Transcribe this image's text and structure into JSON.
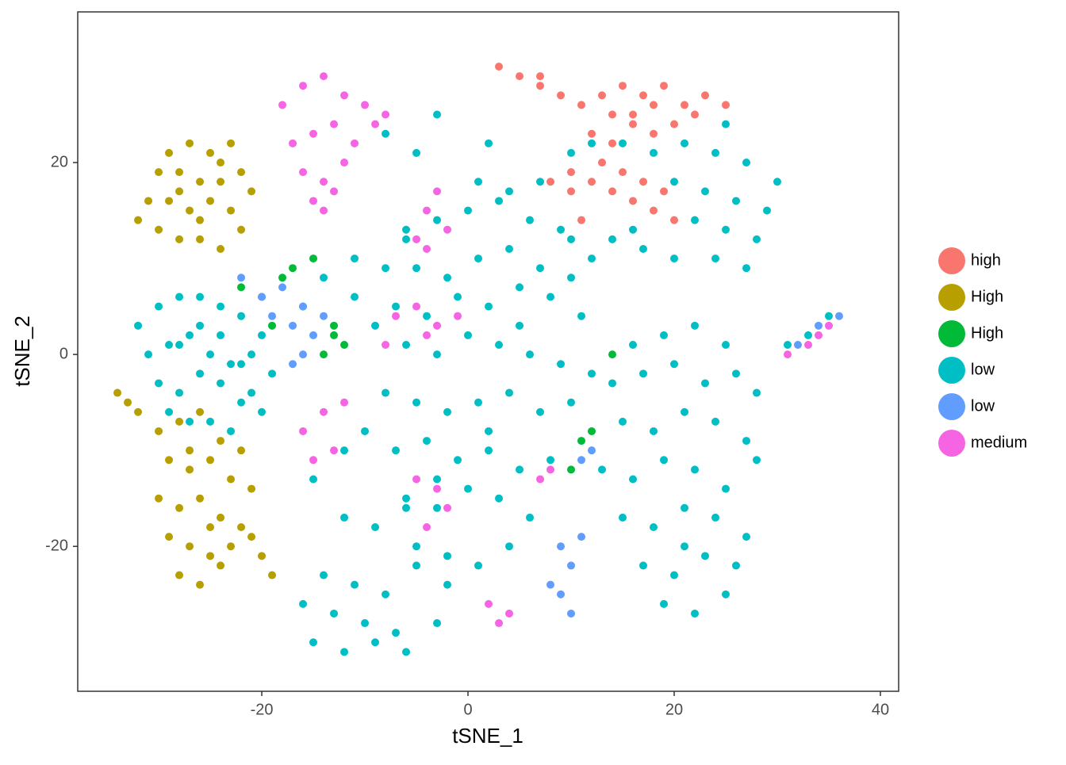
{
  "chart_data": {
    "type": "scatter",
    "x_label": "tSNE_1",
    "y_label": "tSNE_2",
    "xlim": [
      -37.85,
      41.77
    ],
    "ylim": [
      -35.1,
      35.7
    ],
    "xticks": [
      -20,
      0,
      20,
      40
    ],
    "yticks": [
      -20,
      0,
      20
    ],
    "grid": false,
    "legend": "right",
    "series": [
      {
        "name": "high",
        "color": "#F8766D",
        "x": [
          7,
          9,
          11,
          13,
          15,
          17,
          19,
          21,
          14,
          16,
          18,
          20,
          22,
          12,
          14,
          16,
          18,
          10,
          12,
          14,
          16,
          18,
          8,
          10,
          13,
          15,
          17,
          19,
          3,
          5,
          7,
          23,
          25,
          20,
          11
        ],
        "values": [
          28,
          27,
          26,
          27,
          28,
          27,
          28,
          26,
          25,
          25,
          26,
          24,
          25,
          23,
          22,
          24,
          23,
          19,
          18,
          17,
          16,
          15,
          18,
          17,
          20,
          19,
          18,
          17,
          30,
          29,
          29,
          27,
          26,
          14,
          14
        ]
      },
      {
        "name": "High",
        "color": "#B79F00",
        "x": [
          -32,
          -30,
          -28,
          -26,
          -24,
          -22,
          -31,
          -29,
          -27,
          -25,
          -23,
          -21,
          -30,
          -28,
          -26,
          -24,
          -22,
          -29,
          -27,
          -25,
          -23,
          -28,
          -26,
          -24,
          -30,
          -28,
          -26,
          -24,
          -22,
          -29,
          -27,
          -25,
          -23,
          -21,
          -30,
          -28,
          -26,
          -24,
          -22,
          -29,
          -27,
          -25,
          -23,
          -21,
          -28,
          -26,
          -24,
          -27,
          -25,
          -34,
          -33,
          -32,
          -20,
          -19
        ],
        "values": [
          14,
          13,
          12,
          12,
          11,
          13,
          16,
          16,
          15,
          16,
          15,
          17,
          19,
          19,
          18,
          20,
          19,
          21,
          22,
          21,
          22,
          17,
          14,
          18,
          -8,
          -7,
          -6,
          -9,
          -10,
          -11,
          -12,
          -11,
          -13,
          -14,
          -15,
          -16,
          -15,
          -17,
          -18,
          -19,
          -20,
          -21,
          -20,
          -19,
          -23,
          -24,
          -22,
          -10,
          -18,
          -4,
          -5,
          -6,
          -21,
          -23
        ]
      },
      {
        "name": "High",
        "color": "#00BA38",
        "x": [
          -20,
          -18,
          -17,
          -16,
          -13,
          -12,
          -13,
          -14,
          -19,
          11,
          12,
          10,
          14,
          -22,
          -15
        ],
        "values": [
          6,
          8,
          9,
          5,
          2,
          1,
          3,
          0,
          3,
          -9,
          -8,
          -12,
          0,
          7,
          10
        ]
      },
      {
        "name": "low",
        "color": "#00BFC4",
        "x": [
          -32,
          -30,
          -28,
          -26,
          -24,
          -22,
          -20,
          -31,
          -29,
          -27,
          -25,
          -23,
          -21,
          -19,
          -30,
          -28,
          -26,
          -24,
          -22,
          -20,
          -29,
          -27,
          -25,
          -23,
          -21,
          -28,
          -26,
          -24,
          -22,
          -6,
          -3,
          0,
          3,
          6,
          9,
          12,
          -5,
          -2,
          1,
          4,
          7,
          10,
          -7,
          -4,
          -1,
          2,
          5,
          8,
          11,
          -6,
          -3,
          0,
          3,
          6,
          9,
          12,
          -8,
          -5,
          -2,
          1,
          4,
          7,
          10,
          -7,
          -4,
          -1,
          2,
          5,
          8,
          -6,
          -3,
          0,
          3,
          6,
          -5,
          -2,
          1,
          4,
          1,
          4,
          7,
          10,
          2,
          5,
          16,
          19,
          22,
          25,
          14,
          17,
          20,
          23,
          26,
          28,
          15,
          18,
          21,
          24,
          27,
          13,
          16,
          19,
          22,
          25,
          28,
          15,
          18,
          21,
          24,
          27,
          17,
          20,
          23,
          26,
          19,
          22,
          25,
          21,
          12,
          15,
          18,
          21,
          24,
          27,
          30,
          20,
          23,
          26,
          29,
          22,
          25,
          28,
          14,
          17,
          20,
          24,
          27,
          10,
          16,
          25,
          -16,
          -13,
          -10,
          -7,
          -15,
          -12,
          -9,
          -6,
          -3,
          -14,
          -11,
          -8,
          -5,
          -2,
          -12,
          -9,
          -6,
          -3,
          -15,
          -12,
          -10,
          -14,
          -11,
          -8,
          -6,
          -8,
          -5,
          -3,
          2,
          33,
          31,
          35,
          -11,
          -9
        ],
        "values": [
          3,
          5,
          6,
          6,
          5,
          4,
          2,
          0,
          1,
          2,
          0,
          -1,
          0,
          -2,
          -3,
          -4,
          -2,
          -3,
          -5,
          -6,
          -6,
          -7,
          -7,
          -8,
          -4,
          1,
          3,
          2,
          -1,
          12,
          14,
          15,
          16,
          14,
          13,
          10,
          9,
          8,
          10,
          11,
          9,
          8,
          5,
          4,
          6,
          5,
          7,
          6,
          4,
          1,
          0,
          2,
          1,
          0,
          -1,
          -2,
          -4,
          -5,
          -6,
          -5,
          -4,
          -6,
          -5,
          -10,
          -9,
          -11,
          -10,
          -12,
          -11,
          -15,
          -16,
          -14,
          -15,
          -17,
          -20,
          -21,
          -22,
          -20,
          18,
          17,
          18,
          12,
          -8,
          3,
          1,
          2,
          3,
          1,
          -3,
          -2,
          -1,
          -3,
          -2,
          -4,
          -7,
          -8,
          -6,
          -7,
          -9,
          -12,
          -13,
          -11,
          -12,
          -14,
          -11,
          -17,
          -18,
          -16,
          -17,
          -19,
          -22,
          -23,
          -21,
          -22,
          -26,
          -27,
          -25,
          -20,
          22,
          22,
          21,
          22,
          21,
          20,
          18,
          18,
          17,
          16,
          15,
          14,
          13,
          12,
          12,
          11,
          10,
          10,
          9,
          21,
          13,
          24,
          -26,
          -27,
          -28,
          -29,
          -30,
          -31,
          -30,
          -31,
          -28,
          -23,
          -24,
          -25,
          -22,
          -24,
          -17,
          -18,
          -16,
          -13,
          -13,
          -10,
          -8,
          8,
          10,
          9,
          13,
          23,
          21,
          25,
          22,
          2,
          1,
          4,
          6,
          3
        ]
      },
      {
        "name": "low",
        "color": "#619CFF",
        "x": [
          -22,
          -20,
          -18,
          -16,
          -19,
          -17,
          -15,
          -16,
          -17,
          -14,
          9,
          10,
          11,
          8,
          10,
          9,
          11,
          12,
          32,
          34,
          36
        ],
        "values": [
          8,
          6,
          7,
          5,
          4,
          3,
          2,
          0,
          -1,
          4,
          -20,
          -22,
          -19,
          -24,
          -27,
          -25,
          -11,
          -10,
          1,
          3,
          4
        ]
      },
      {
        "name": "medium",
        "color": "#F564E3",
        "x": [
          -18,
          -16,
          -14,
          -12,
          -10,
          -8,
          -17,
          -15,
          -13,
          -11,
          -9,
          -16,
          -14,
          -12,
          -15,
          -13,
          -14,
          -16,
          -14,
          -12,
          -15,
          -13,
          -4,
          -3,
          -5,
          -2,
          -4,
          -7,
          -5,
          -3,
          -1,
          -8,
          -4,
          -5,
          -3,
          -2,
          -4,
          2,
          3,
          4,
          8,
          7,
          33,
          31,
          34,
          35
        ],
        "values": [
          26,
          28,
          29,
          27,
          26,
          25,
          22,
          23,
          24,
          22,
          24,
          19,
          18,
          20,
          16,
          17,
          15,
          -8,
          -6,
          -5,
          -11,
          -10,
          15,
          17,
          12,
          13,
          11,
          4,
          5,
          3,
          4,
          1,
          2,
          -13,
          -14,
          -16,
          -18,
          -26,
          -28,
          -27,
          -12,
          -13,
          1,
          0,
          2,
          3
        ]
      }
    ]
  }
}
